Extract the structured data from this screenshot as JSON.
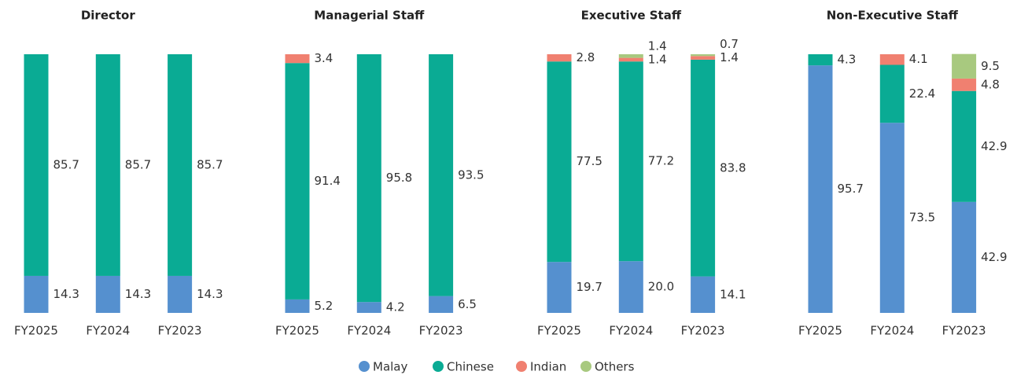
{
  "chart_data": [
    {
      "type": "bar",
      "stacked": true,
      "title": "Director",
      "categories": [
        "FY2025",
        "FY2024",
        "FY2023"
      ],
      "ylim": [
        0,
        100
      ],
      "series": [
        {
          "name": "Malay",
          "color": "#5590cf",
          "values": [
            14.3,
            14.3,
            14.3
          ],
          "value_labels": [
            "14.3",
            "14.3",
            "14.3"
          ]
        },
        {
          "name": "Chinese",
          "color": "#0aab94",
          "values": [
            85.7,
            85.7,
            85.7
          ],
          "value_labels": [
            "85.7",
            "85.7",
            "85.7"
          ]
        },
        {
          "name": "Indian",
          "color": "#f08070",
          "values": [
            null,
            null,
            null
          ],
          "value_labels": [
            null,
            null,
            null
          ]
        },
        {
          "name": "Others",
          "color": "#a8c97f",
          "values": [
            null,
            null,
            null
          ],
          "value_labels": [
            null,
            null,
            null
          ]
        }
      ]
    },
    {
      "type": "bar",
      "stacked": true,
      "title": "Managerial Staff",
      "categories": [
        "FY2025",
        "FY2024",
        "FY2023"
      ],
      "ylim": [
        0,
        100
      ],
      "series": [
        {
          "name": "Malay",
          "color": "#5590cf",
          "values": [
            5.2,
            4.2,
            6.5
          ],
          "value_labels": [
            "5.2",
            "4.2",
            "6.5"
          ]
        },
        {
          "name": "Chinese",
          "color": "#0aab94",
          "values": [
            91.4,
            95.8,
            93.5
          ],
          "value_labels": [
            "91.4",
            "95.8",
            "93.5"
          ]
        },
        {
          "name": "Indian",
          "color": "#f08070",
          "values": [
            3.4,
            null,
            null
          ],
          "value_labels": [
            "3.4",
            null,
            null
          ]
        },
        {
          "name": "Others",
          "color": "#a8c97f",
          "values": [
            null,
            null,
            null
          ],
          "value_labels": [
            null,
            null,
            null
          ]
        }
      ]
    },
    {
      "type": "bar",
      "stacked": true,
      "title": "Executive Staff",
      "categories": [
        "FY2025",
        "FY2024",
        "FY2023"
      ],
      "ylim": [
        0,
        100
      ],
      "series": [
        {
          "name": "Malay",
          "color": "#5590cf",
          "values": [
            19.7,
            20.0,
            14.1
          ],
          "value_labels": [
            "19.7",
            "20.0",
            "14.1"
          ]
        },
        {
          "name": "Chinese",
          "color": "#0aab94",
          "values": [
            77.5,
            77.2,
            83.8
          ],
          "value_labels": [
            "77.5",
            "77.2",
            "83.8"
          ]
        },
        {
          "name": "Indian",
          "color": "#f08070",
          "values": [
            2.8,
            1.4,
            1.4
          ],
          "value_labels": [
            "2.8",
            "1.4",
            "1.4"
          ]
        },
        {
          "name": "Others",
          "color": "#a8c97f",
          "values": [
            null,
            1.4,
            0.7
          ],
          "value_labels": [
            null,
            "1.4",
            "0.7"
          ]
        }
      ]
    },
    {
      "type": "bar",
      "stacked": true,
      "title": "Non-Executive Staff",
      "categories": [
        "FY2025",
        "FY2024",
        "FY2023"
      ],
      "ylim": [
        0,
        100
      ],
      "series": [
        {
          "name": "Malay",
          "color": "#5590cf",
          "values": [
            95.7,
            73.5,
            42.9
          ],
          "value_labels": [
            "95.7",
            "73.5",
            "42.9"
          ]
        },
        {
          "name": "Chinese",
          "color": "#0aab94",
          "values": [
            4.3,
            22.4,
            42.9
          ],
          "value_labels": [
            "4.3",
            "22.4",
            "42.9"
          ]
        },
        {
          "name": "Indian",
          "color": "#f08070",
          "values": [
            null,
            4.1,
            4.8
          ],
          "value_labels": [
            null,
            "4.1",
            "4.8"
          ]
        },
        {
          "name": "Others",
          "color": "#a8c97f",
          "values": [
            null,
            null,
            9.5
          ],
          "value_labels": [
            null,
            null,
            "9.5"
          ]
        }
      ]
    }
  ]
}
